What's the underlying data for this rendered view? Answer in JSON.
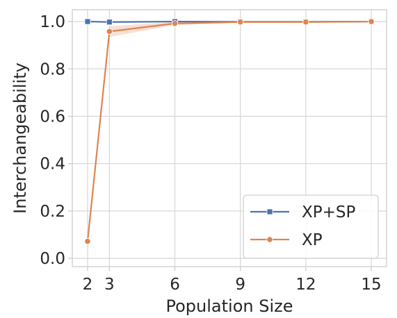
{
  "chart_data": {
    "type": "line",
    "title": "",
    "xlabel": "Population Size",
    "ylabel": "Interchangeability",
    "xlim": [
      1.3,
      15.7
    ],
    "ylim": [
      -0.035,
      1.05
    ],
    "xticks": [
      2,
      3,
      6,
      9,
      12,
      15
    ],
    "yticks": [
      0.0,
      0.2,
      0.4,
      0.6,
      0.8,
      1.0
    ],
    "grid": true,
    "legend": "bottom-right",
    "series": [
      {
        "name": "XP+SP",
        "color": "#4c72b0",
        "marker": "square",
        "x": [
          2,
          3,
          6,
          9,
          12,
          15
        ],
        "y": [
          1.0,
          0.998,
          1.0,
          0.999,
          0.999,
          1.0
        ]
      },
      {
        "name": "XP",
        "color": "#dd8452",
        "marker": "circle",
        "x": [
          2,
          3,
          6,
          9,
          12,
          15
        ],
        "y": [
          0.072,
          0.958,
          0.992,
          0.998,
          0.998,
          1.0
        ],
        "band_lower": [
          0.07,
          0.935,
          0.985,
          0.996,
          0.997,
          0.999
        ],
        "band_upper": [
          0.074,
          0.98,
          0.999,
          1.0,
          0.999,
          1.0
        ]
      }
    ]
  }
}
